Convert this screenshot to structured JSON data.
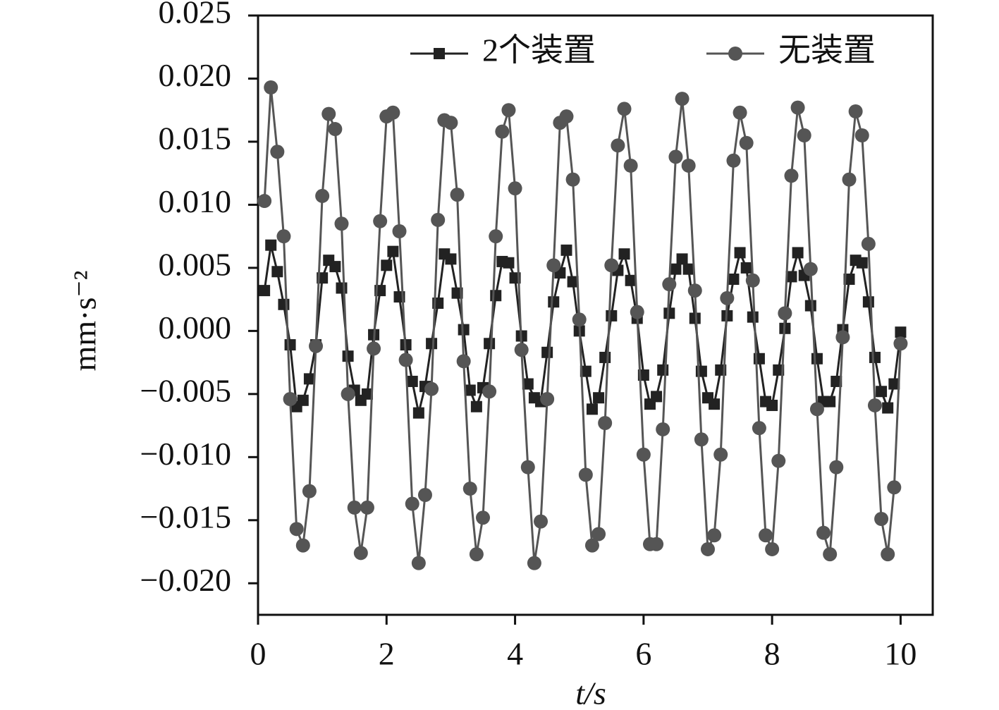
{
  "chart_data": {
    "type": "line",
    "x_label": "t/s",
    "y_label": "mm·s⁻²",
    "x": [
      0.1,
      0.2,
      0.3,
      0.4,
      0.5,
      0.6,
      0.7,
      0.8,
      0.9,
      1.0,
      1.1,
      1.2,
      1.3,
      1.4,
      1.5,
      1.6,
      1.7,
      1.8,
      1.9,
      2.0,
      2.1,
      2.2,
      2.3,
      2.4,
      2.5,
      2.6,
      2.7,
      2.8,
      2.9,
      3.0,
      3.1,
      3.2,
      3.3,
      3.4,
      3.5,
      3.6,
      3.7,
      3.8,
      3.9,
      4.0,
      4.1,
      4.2,
      4.3,
      4.4,
      4.5,
      4.6,
      4.7,
      4.8,
      4.9,
      5.0,
      5.1,
      5.2,
      5.3,
      5.4,
      5.5,
      5.6,
      5.7,
      5.8,
      5.9,
      6.0,
      6.1,
      6.2,
      6.3,
      6.4,
      6.5,
      6.6,
      6.7,
      6.8,
      6.9,
      7.0,
      7.1,
      7.2,
      7.3,
      7.4,
      7.5,
      7.6,
      7.7,
      7.8,
      7.9,
      8.0,
      8.1,
      8.2,
      8.3,
      8.4,
      8.5,
      8.6,
      8.7,
      8.8,
      8.9,
      9.0,
      9.1,
      9.2,
      9.3,
      9.4,
      9.5,
      9.6,
      9.7,
      9.8,
      9.9,
      10.0
    ],
    "series": [
      {
        "name": "2个装置",
        "color": "#222222",
        "marker": "square",
        "values": [
          0.0032,
          0.0068,
          0.0047,
          0.0021,
          -0.0011,
          -0.006,
          -0.0055,
          -0.0038,
          -0.0011,
          0.0042,
          0.0056,
          0.0051,
          0.0034,
          -0.002,
          -0.0047,
          -0.0055,
          -0.005,
          -0.0003,
          0.0032,
          0.0052,
          0.0063,
          0.0027,
          -0.0011,
          -0.004,
          -0.0065,
          -0.0044,
          -0.001,
          0.0022,
          0.0061,
          0.0057,
          0.003,
          0.0001,
          -0.0047,
          -0.006,
          -0.0045,
          -0.001,
          0.0028,
          0.0055,
          0.0054,
          0.0042,
          -0.0004,
          -0.0042,
          -0.0053,
          -0.0056,
          -0.0017,
          0.0023,
          0.0046,
          0.0064,
          0.0039,
          0.0,
          -0.0032,
          -0.0062,
          -0.0053,
          -0.0021,
          0.0012,
          0.0048,
          0.0061,
          0.004,
          0.001,
          -0.0035,
          -0.0058,
          -0.0052,
          -0.0031,
          0.0014,
          0.0049,
          0.0057,
          0.0049,
          0.001,
          -0.0032,
          -0.0053,
          -0.0058,
          -0.0031,
          0.0012,
          0.0041,
          0.0062,
          0.005,
          0.0011,
          -0.0022,
          -0.0056,
          -0.0059,
          -0.0031,
          0.0002,
          0.0043,
          0.0062,
          0.0044,
          0.002,
          -0.0022,
          -0.0056,
          -0.0056,
          -0.004,
          0.0001,
          0.0041,
          0.0056,
          0.0054,
          0.0023,
          -0.0021,
          -0.0048,
          -0.0061,
          -0.0042,
          -0.0001
        ]
      },
      {
        "name": "无装置",
        "color": "#555555",
        "marker": "circle",
        "values": [
          0.0103,
          0.0193,
          0.0142,
          0.0075,
          -0.0054,
          -0.0157,
          -0.017,
          -0.0127,
          -0.0012,
          0.0107,
          0.0172,
          0.016,
          0.0085,
          -0.005,
          -0.014,
          -0.0176,
          -0.014,
          -0.0014,
          0.0087,
          0.017,
          0.0173,
          0.0079,
          -0.0023,
          -0.0137,
          -0.0184,
          -0.013,
          -0.0046,
          0.0088,
          0.0167,
          0.0165,
          0.0108,
          -0.0024,
          -0.0125,
          -0.0177,
          -0.0148,
          -0.0048,
          0.0075,
          0.0158,
          0.0175,
          0.0113,
          -0.0015,
          -0.0108,
          -0.0184,
          -0.0151,
          -0.0054,
          0.0052,
          0.0165,
          0.017,
          0.012,
          0.0009,
          -0.0114,
          -0.017,
          -0.0161,
          -0.0073,
          0.0052,
          0.0147,
          0.0176,
          0.0131,
          0.0015,
          -0.0098,
          -0.0169,
          -0.0169,
          -0.0078,
          0.0037,
          0.0138,
          0.0184,
          0.0131,
          0.0032,
          -0.0086,
          -0.0173,
          -0.0162,
          -0.0098,
          0.0026,
          0.0135,
          0.0173,
          0.0149,
          0.004,
          -0.0077,
          -0.0162,
          -0.0173,
          -0.0103,
          0.0014,
          0.0123,
          0.0177,
          0.0155,
          0.0049,
          -0.0062,
          -0.016,
          -0.0177,
          -0.0108,
          -0.0005,
          0.012,
          0.0174,
          0.0155,
          0.0069,
          -0.0059,
          -0.0149,
          -0.0177,
          -0.0124,
          -0.001
        ]
      }
    ],
    "xlim": [
      0,
      10.5
    ],
    "xticks": [
      0,
      2,
      4,
      6,
      8,
      10
    ],
    "ylim": [
      -0.0225,
      0.025
    ],
    "yticks": [
      {
        "value": -0.02,
        "label": "−0.020"
      },
      {
        "value": -0.015,
        "label": "−0.015"
      },
      {
        "value": -0.01,
        "label": "−0.010"
      },
      {
        "value": -0.005,
        "label": "−0.005"
      },
      {
        "value": 0,
        "label": "0.000"
      },
      {
        "value": 0.005,
        "label": "0.005"
      },
      {
        "value": 0.01,
        "label": "0.010"
      },
      {
        "value": 0.015,
        "label": "0.015"
      },
      {
        "value": 0.02,
        "label": "0.020"
      },
      {
        "value": 0.025,
        "label": "0.025"
      }
    ],
    "legend": "top",
    "grid": false
  }
}
